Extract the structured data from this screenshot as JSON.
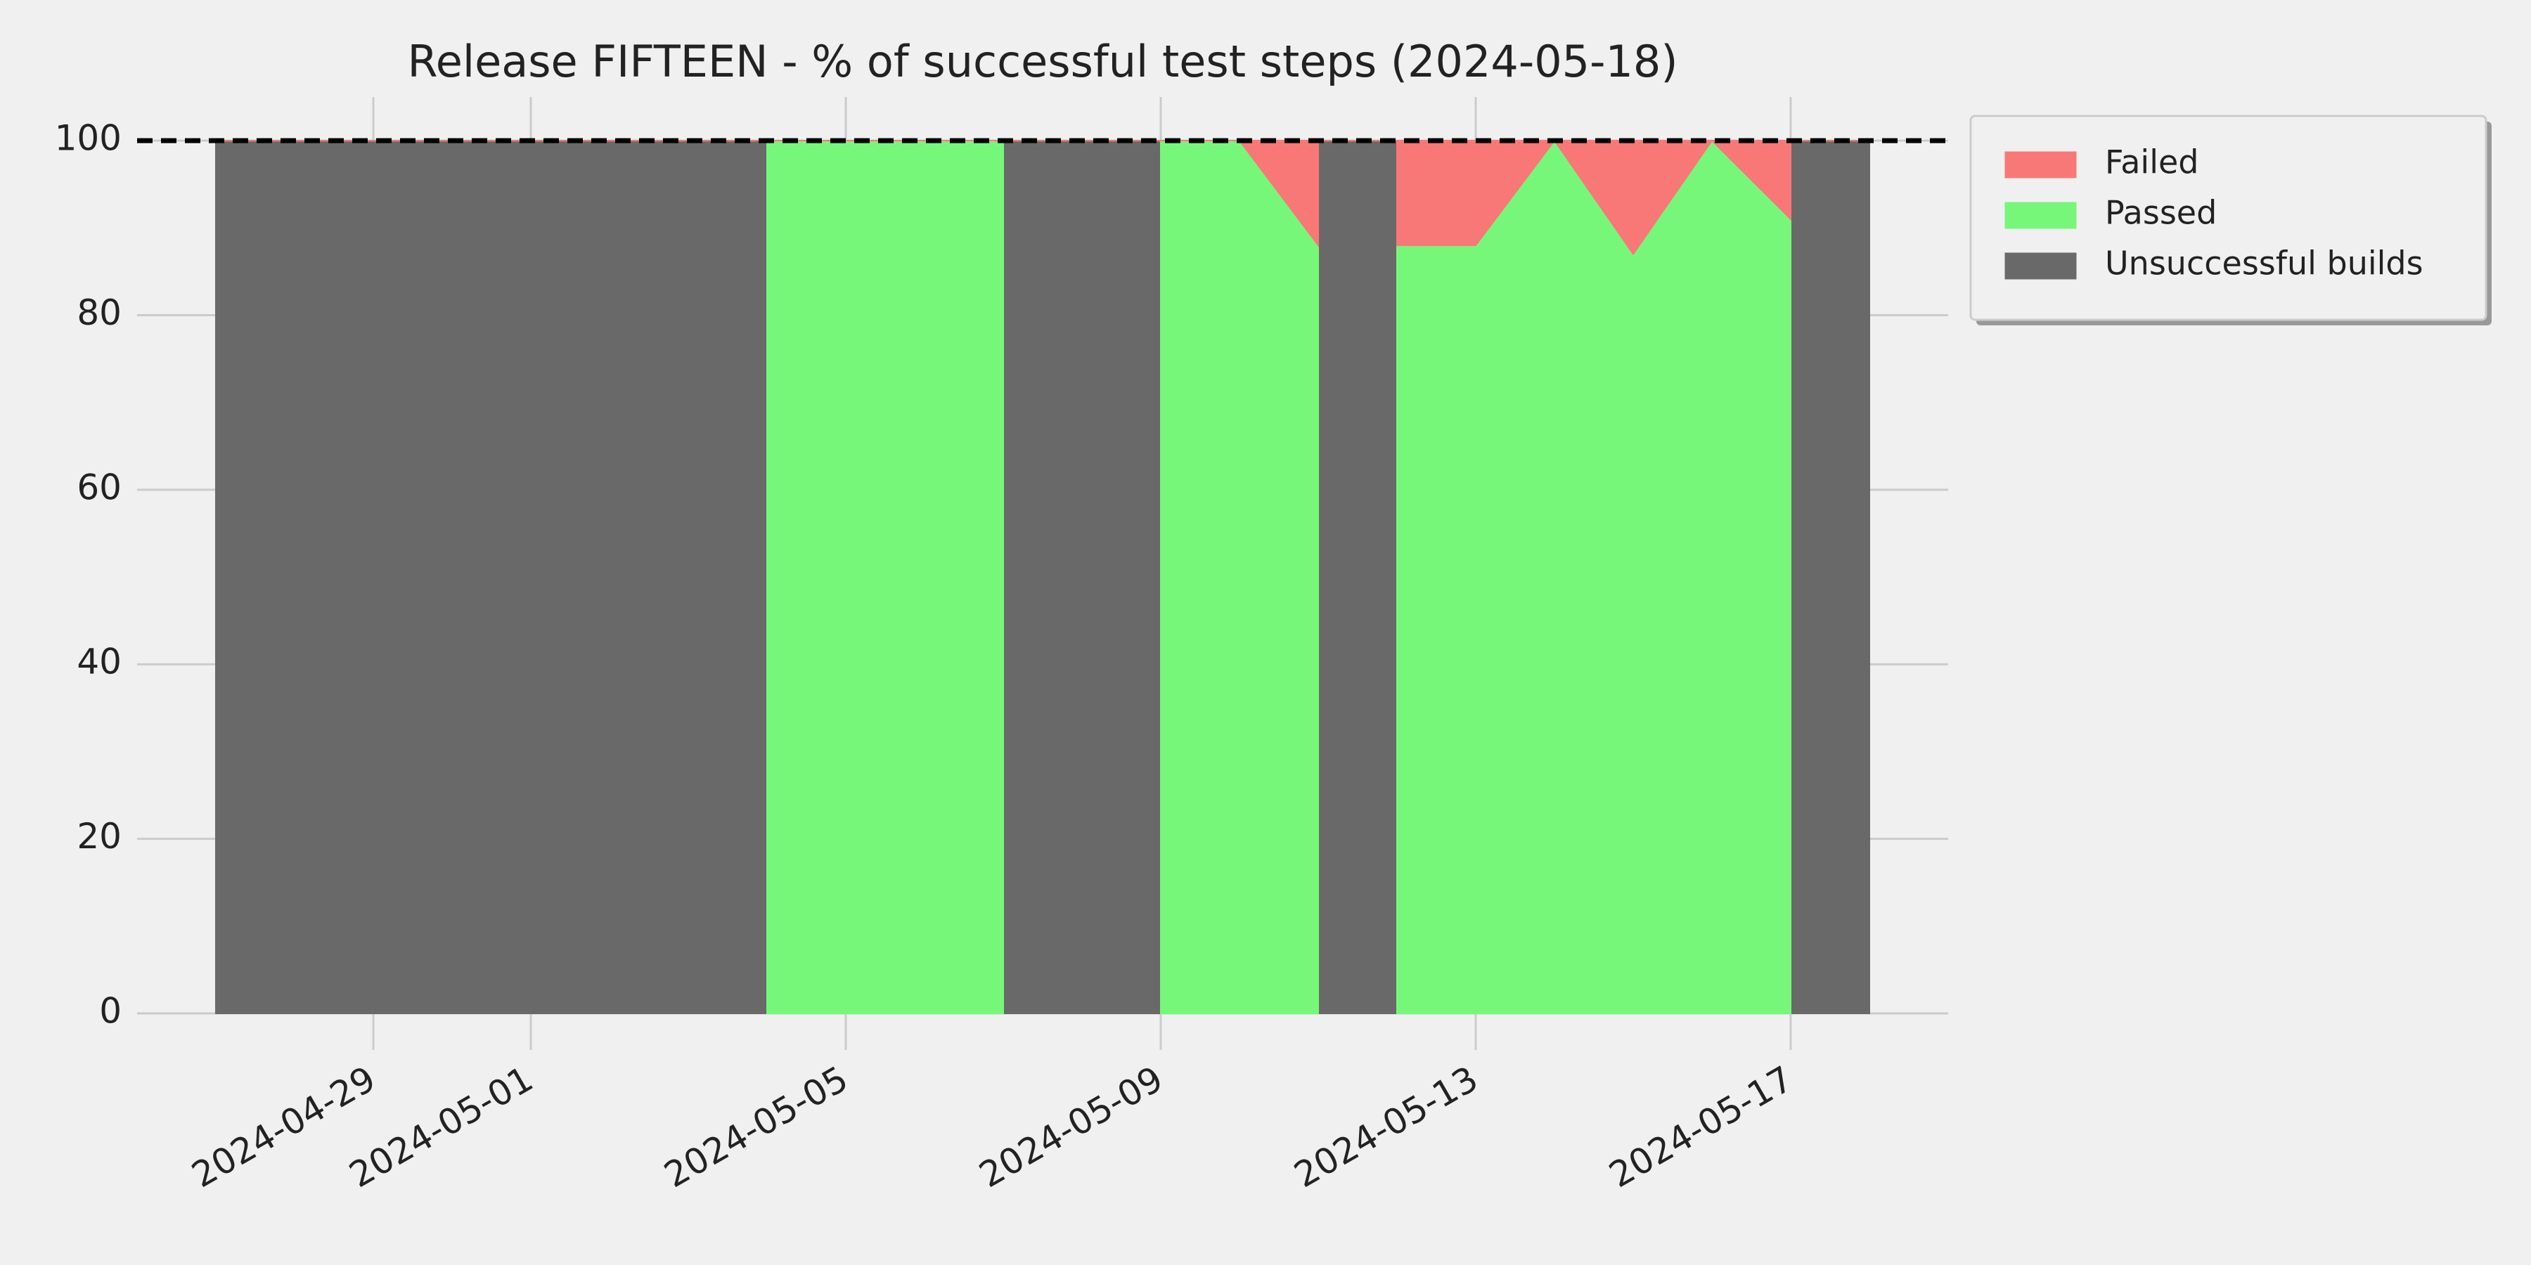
{
  "chart_data": {
    "type": "stackplot",
    "title": "Release FIFTEEN - % of successful test steps (2024-05-18)",
    "x": [
      "2024-04-27",
      "2024-05-04",
      "2024-05-04",
      "2024-05-07",
      "2024-05-07",
      "2024-05-09",
      "2024-05-09",
      "2024-05-10",
      "2024-05-11",
      "2024-05-11",
      "2024-05-12",
      "2024-05-12",
      "2024-05-13",
      "2024-05-14",
      "2024-05-15",
      "2024-05-16",
      "2024-05-17",
      "2024-05-17",
      "2024-05-18"
    ],
    "series": [
      {
        "name": "Failed",
        "color": "#f87878",
        "values": [
          0,
          0,
          0,
          0,
          0,
          0,
          0,
          0,
          12,
          0,
          0,
          12,
          12,
          0,
          13,
          0,
          9,
          0,
          0
        ]
      },
      {
        "name": "Passed",
        "color": "#77f77a",
        "values": [
          0,
          0,
          100,
          100,
          0,
          0,
          100,
          100,
          88,
          0,
          0,
          88,
          88,
          100,
          87,
          100,
          91,
          0,
          0
        ]
      },
      {
        "name": "Unsuccessful builds",
        "color": "#696969",
        "values": [
          100,
          100,
          0,
          0,
          100,
          100,
          0,
          0,
          0,
          100,
          100,
          0,
          0,
          0,
          0,
          0,
          0,
          100,
          100
        ]
      }
    ],
    "xlim": [
      "2024-04-26",
      "2024-05-19"
    ],
    "xticks": [
      "2024-04-29",
      "2024-05-01",
      "2024-05-05",
      "2024-05-09",
      "2024-05-13",
      "2024-05-17"
    ],
    "ylim": [
      0,
      105
    ],
    "yticks": [
      0,
      20,
      40,
      60,
      80,
      100
    ],
    "target": 100,
    "grid": true,
    "legend": "outside-upper-right"
  }
}
